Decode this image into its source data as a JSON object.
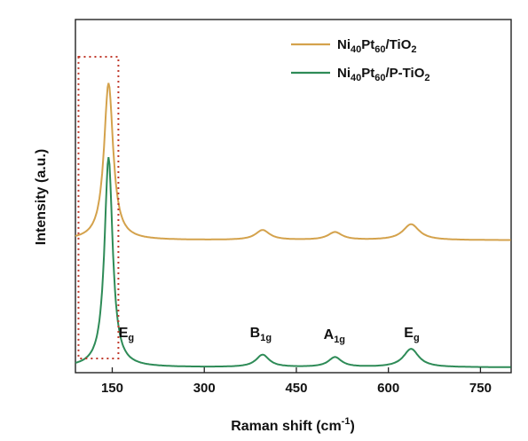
{
  "chart_data": {
    "type": "line",
    "xlabel": "Raman shift (cm",
    "xlabel_sup": "-1",
    "xlabel_end": ")",
    "ylabel": "Intensity (a.u.)",
    "xlim": [
      90,
      800
    ],
    "xticks": [
      150,
      300,
      450,
      600,
      750
    ],
    "ylim": [
      0,
      1
    ],
    "grid": false,
    "legend_position": "top-right",
    "colors": {
      "series1": "#d4a24c",
      "series2": "#2e8b57",
      "highlight_box": "#c0392b"
    },
    "series": [
      {
        "name_base": "Ni",
        "name_parts": [
          [
            "Ni",
            ""
          ],
          [
            "40",
            "sub"
          ],
          [
            "Pt",
            ""
          ],
          [
            "60",
            "sub"
          ],
          [
            "/TiO",
            ""
          ],
          [
            "2",
            "sub"
          ]
        ],
        "baseline": 0.375,
        "peaks": [
          [
            144,
            0.445,
            9
          ],
          [
            395,
            0.028,
            14
          ],
          [
            513,
            0.022,
            14
          ],
          [
            637,
            0.045,
            16
          ]
        ]
      },
      {
        "name_base": "Ni",
        "name_parts": [
          [
            "Ni",
            ""
          ],
          [
            "40",
            "sub"
          ],
          [
            "Pt",
            ""
          ],
          [
            "60",
            "sub"
          ],
          [
            "/P-TiO",
            ""
          ],
          [
            "2",
            "sub"
          ]
        ],
        "baseline": 0.015,
        "peaks": [
          [
            144,
            0.595,
            8
          ],
          [
            395,
            0.035,
            13
          ],
          [
            513,
            0.028,
            13
          ],
          [
            637,
            0.052,
            15
          ]
        ]
      }
    ],
    "annotations": [
      {
        "base": "E",
        "sub": "g",
        "x": 173,
        "y": 0.08
      },
      {
        "base": "B",
        "sub": "1g",
        "x": 392,
        "y": 0.08
      },
      {
        "base": "A",
        "sub": "1g",
        "x": 512,
        "y": 0.075
      },
      {
        "base": "E",
        "sub": "g",
        "x": 638,
        "y": 0.08
      }
    ],
    "highlight_box": {
      "x_range": [
        95,
        160
      ]
    }
  }
}
